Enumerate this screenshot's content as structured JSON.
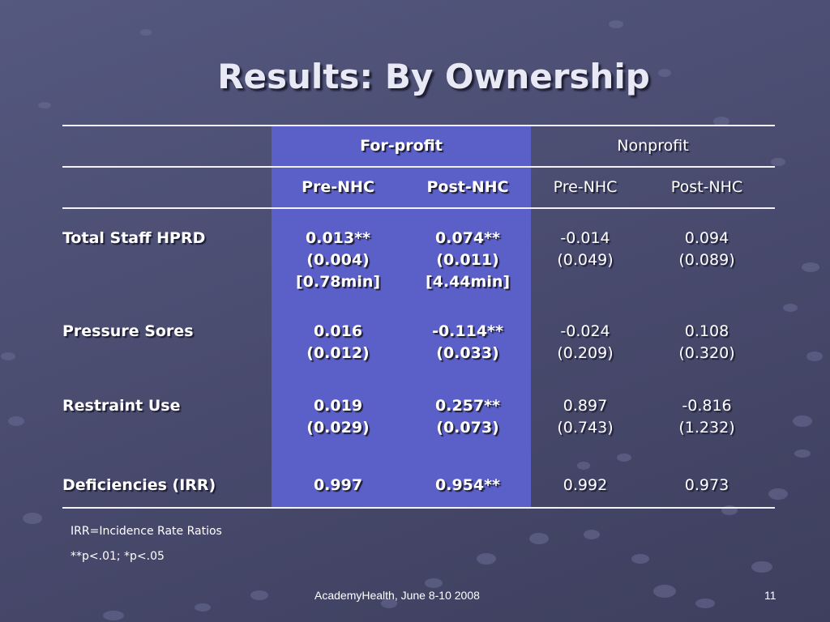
{
  "slide": {
    "title": "Results: By Ownership",
    "footer_text": "AcademyHealth, June 8-10 2008",
    "page_number": "11",
    "band_color": "#5b5fc8",
    "background_color": "#4a4c70"
  },
  "table": {
    "group_headers": [
      "For-profit",
      "Nonprofit"
    ],
    "column_headers": [
      "Pre-NHC",
      "Post-NHC",
      "Pre-NHC",
      "Post-NHC"
    ],
    "rows": [
      {
        "label": "Total Staff HPRD",
        "cells": [
          [
            "0.013**",
            "(0.004)",
            "[0.78min]"
          ],
          [
            "0.074**",
            "(0.011)",
            "[4.44min]"
          ],
          [
            "-0.014",
            "(0.049)"
          ],
          [
            "0.094",
            "(0.089)"
          ]
        ]
      },
      {
        "label": "Pressure Sores",
        "cells": [
          [
            "0.016",
            "(0.012)"
          ],
          [
            "-0.114**",
            "(0.033)"
          ],
          [
            "-0.024",
            "(0.209)"
          ],
          [
            "0.108",
            "(0.320)"
          ]
        ]
      },
      {
        "label": "Restraint Use",
        "cells": [
          [
            "0.019",
            "(0.029)"
          ],
          [
            "0.257**",
            "(0.073)"
          ],
          [
            "0.897",
            "(0.743)"
          ],
          [
            "-0.816",
            "(1.232)"
          ]
        ]
      },
      {
        "label": "Deficiencies (IRR)",
        "cells": [
          [
            "0.997"
          ],
          [
            "0.954**"
          ],
          [
            "0.992"
          ],
          [
            "0.973"
          ]
        ]
      }
    ]
  },
  "notes": [
    "IRR=Incidence Rate Ratios",
    "**p<.01; *p<.05"
  ]
}
